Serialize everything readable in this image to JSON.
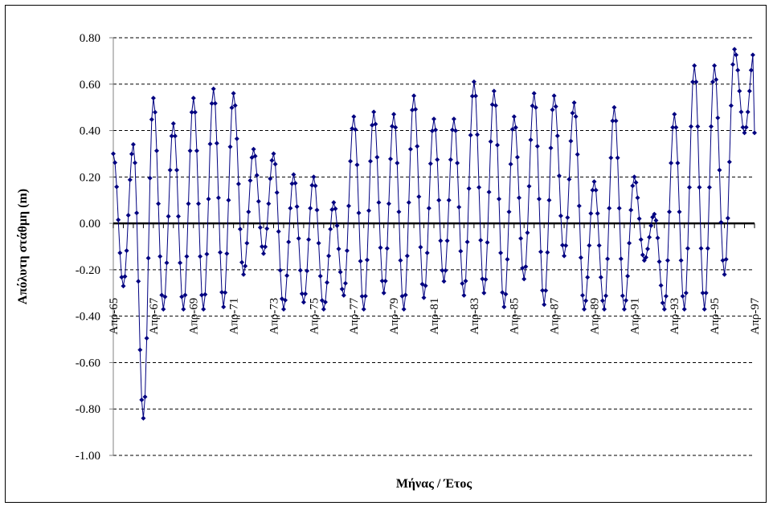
{
  "chart_data": {
    "type": "line",
    "xlabel": "Μήνας / Έτος",
    "ylabel": "Απόλυτη στάθμη (m)",
    "ylim": [
      -1.0,
      0.8
    ],
    "yticks": [
      0.8,
      0.6,
      0.4,
      0.2,
      0.0,
      -0.2,
      -0.4,
      -0.6,
      -0.8,
      -1.0
    ],
    "ytick_labels": [
      "0.80",
      "0.60",
      "0.40",
      "0.20",
      "0.00",
      "-0.20",
      "-0.40",
      "-0.60",
      "-0.80",
      "-1.00"
    ],
    "x_range": [
      "Απρ-65",
      "Απρ-97"
    ],
    "x_tick_labels": [
      "Απρ-65",
      "Απρ-67",
      "Απρ-69",
      "Απρ-71",
      "Απρ-73",
      "Απρ-75",
      "Απρ-77",
      "Απρ-79",
      "Απρ-81",
      "Απρ-83",
      "Απρ-85",
      "Απρ-87",
      "Απρ-89",
      "Απρ-91",
      "Απρ-93",
      "Απρ-95",
      "Απρ-97"
    ],
    "grid": "horizontal dashed",
    "legend": "none",
    "colors": {
      "series": "#000080",
      "zero_line": "#000000",
      "grid": "#000000"
    },
    "series": [
      {
        "annual_peak_month": "Απρ",
        "annual_peaks": [
          0.3,
          0.34,
          0.54,
          0.43,
          0.54,
          0.58,
          0.56,
          0.32,
          0.3,
          0.21,
          0.2,
          0.09,
          0.46,
          0.48,
          0.47,
          0.55,
          0.45,
          0.45,
          0.61,
          0.57,
          0.46,
          0.56,
          0.55,
          0.52,
          0.18,
          0.5,
          0.2,
          0.04,
          0.47,
          0.68,
          0.68,
          0.75
        ],
        "annual_troughs": [
          -0.27,
          -0.84,
          -0.37,
          -0.37,
          -0.37,
          -0.36,
          -0.22,
          -0.13,
          -0.37,
          -0.34,
          -0.37,
          -0.31,
          -0.37,
          -0.3,
          -0.37,
          -0.32,
          -0.25,
          -0.31,
          -0.3,
          -0.36,
          -0.24,
          -0.35,
          -0.14,
          -0.37,
          -0.37,
          -0.37,
          -0.16,
          -0.37,
          -0.37,
          -0.37,
          -0.22,
          0.39
        ]
      }
    ]
  }
}
